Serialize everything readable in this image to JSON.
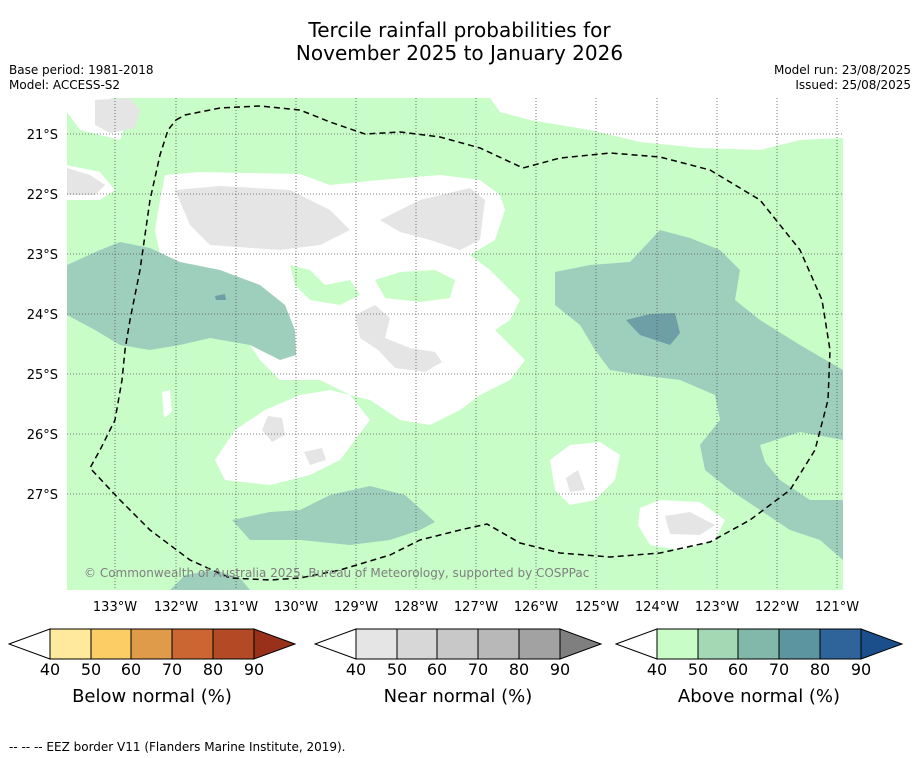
{
  "title_line1": "Tercile rainfall probabilities for",
  "title_line2": "November 2025 to January 2026",
  "base_period": "Base period: 1981-2018",
  "model": "Model: ACCESS-S2",
  "model_run": "Model run: 23/08/2025",
  "issued": "Issued: 25/08/2025",
  "copyright": "© Commonwealth of Australia 2025, Bureau of Meteorology, supported by COSPPac",
  "footer": "--  --  -- EEZ border V11 (Flanders Marine Institute, 2019).",
  "lat_labels": [
    "21°S",
    "22°S",
    "23°S",
    "24°S",
    "25°S",
    "26°S",
    "27°S"
  ],
  "lon_labels": [
    "133°W",
    "132°W",
    "131°W",
    "130°W",
    "129°W",
    "128°W",
    "127°W",
    "126°W",
    "125°W",
    "124°W",
    "123°W",
    "122°W",
    "121°W"
  ],
  "colorbars": [
    {
      "title": "Below normal (%)",
      "ticks": [
        "40",
        "50",
        "60",
        "70",
        "80",
        "90"
      ],
      "colors": [
        "#ffffff",
        "#fee99d",
        "#fdcd65",
        "#e09b4a",
        "#cb6532",
        "#b24a26",
        "#99301a"
      ]
    },
    {
      "title": "Near normal (%)",
      "ticks": [
        "40",
        "50",
        "60",
        "70",
        "80",
        "90"
      ],
      "colors": [
        "#ffffff",
        "#e5e5e5",
        "#d7d7d7",
        "#c8c8c8",
        "#b8b8b8",
        "#a2a2a2",
        "#7f7f7f"
      ]
    },
    {
      "title": "Above normal (%)",
      "ticks": [
        "40",
        "50",
        "60",
        "70",
        "80",
        "90"
      ],
      "colors": [
        "#ffffff",
        "#c8fdc8",
        "#a4d8b4",
        "#82b8aa",
        "#5c95a0",
        "#2e649a",
        "#1b4f8c"
      ]
    }
  ],
  "map_colors": {
    "above_40": "#c8fdc8",
    "above_50": "#9ecfbc",
    "above_60": "#6e9ea6",
    "near_40": "#e5e5e5",
    "neutral": "#ffffff"
  }
}
